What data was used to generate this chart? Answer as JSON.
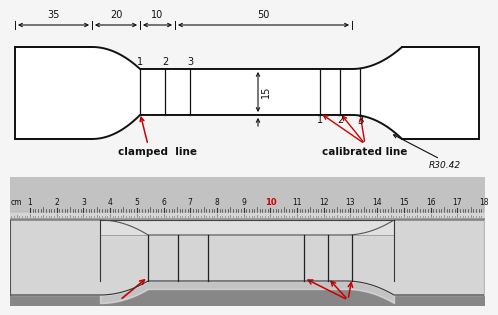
{
  "bg_color": "#f5f5f5",
  "dim_35": "35",
  "dim_20": "20",
  "dim_10": "10",
  "dim_50": "50",
  "dim_r": "R30.42",
  "dim_15": "15",
  "label_clamped": "clamped  line",
  "label_calibrated": "calibrated line",
  "line_nums_left": [
    "1",
    "2",
    "3"
  ],
  "line_nums_right": [
    "1",
    "2",
    "3"
  ],
  "ruler_nums": [
    "1",
    "2",
    "3",
    "4",
    "5",
    "6",
    "7",
    "8",
    "9",
    "10",
    "11",
    "12",
    "13",
    "14",
    "15",
    "16",
    "17",
    "18"
  ],
  "ruler_10_color": "#cc0000",
  "arrow_color": "#cc0000",
  "text_color": "#111111",
  "line_color": "#111111",
  "schematic_bg": "#f5f5f5",
  "photo_bg1": "#8a8a8a",
  "photo_bg2": "#aaaaaa",
  "specimen_light": "#e8e8e8",
  "grip_color": "#b0b0b0",
  "ruler_color": "#c0c0c0"
}
